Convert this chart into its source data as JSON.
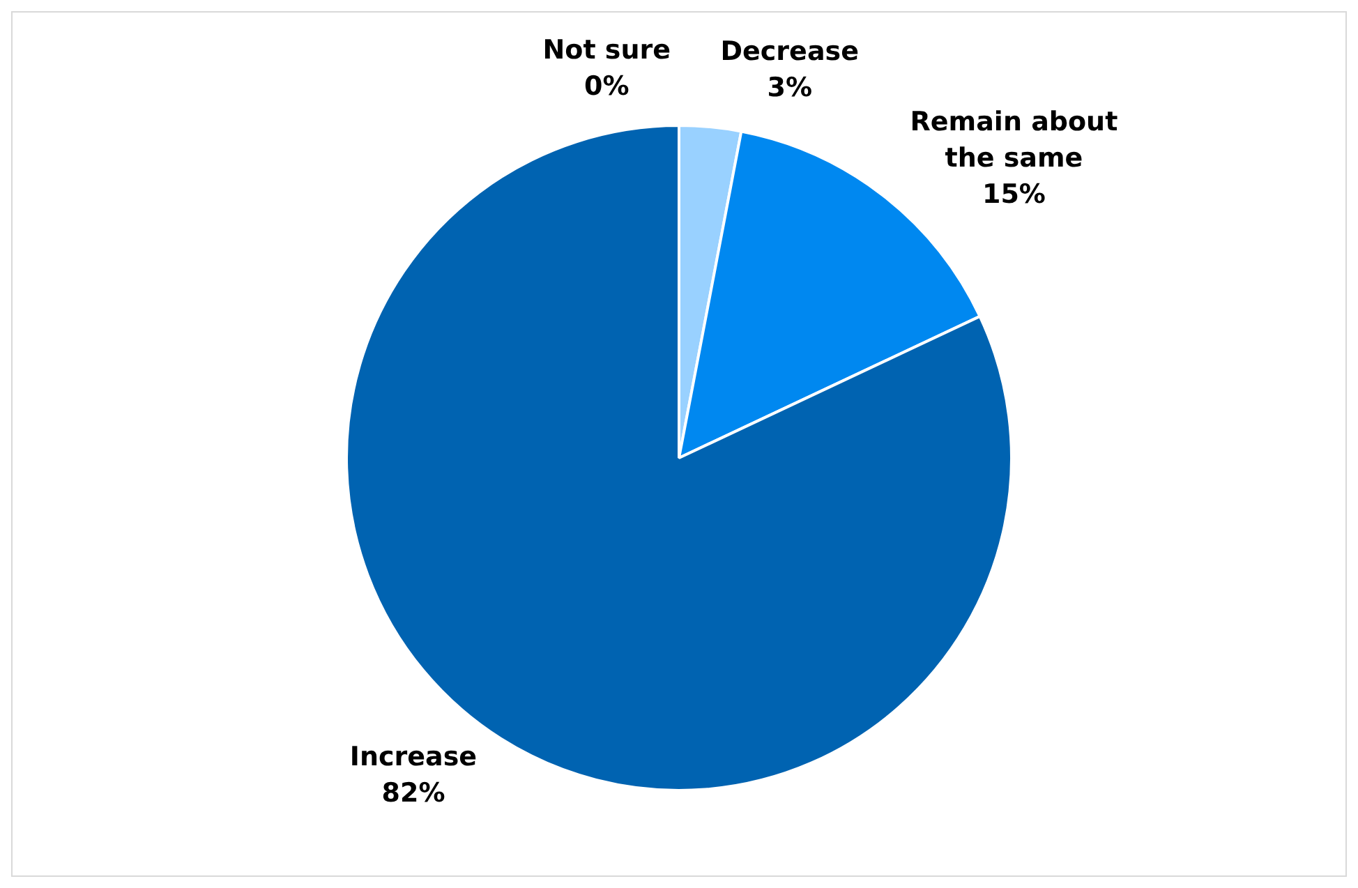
{
  "chart_data": {
    "type": "pie",
    "categories": [
      "Not sure",
      "Decrease",
      "Remain about the same",
      "Increase"
    ],
    "values": [
      0,
      3,
      15,
      82
    ],
    "colors": [
      "#ffffff",
      "#99d1ff",
      "#0088f0",
      "#0063b1"
    ],
    "value_labels": [
      "0%",
      "3%",
      "15%",
      "82%"
    ],
    "legend": false
  }
}
